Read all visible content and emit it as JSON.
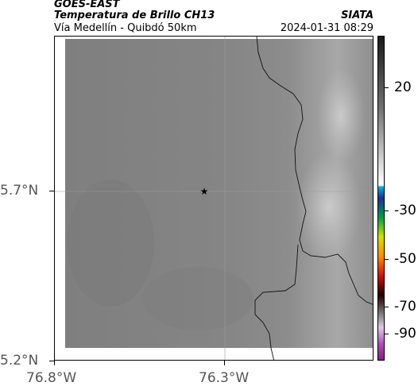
{
  "header": {
    "satellite": "GOES-EAST",
    "product": "Temperatura de Brillo CH13",
    "route": "Vía Medellín - Quibdó 50km",
    "org": "SIATA",
    "timestamp": "2024-01-31 08:29"
  },
  "axes": {
    "y_ticks": [
      "5.7°N",
      "5.2°N"
    ],
    "x_ticks": [
      "76.8°W",
      "76.3°W"
    ]
  },
  "colorbar": {
    "tick_labels": [
      "20",
      "-30",
      "-50",
      "-70",
      "-90"
    ],
    "tick_values": [
      20,
      -30,
      -50,
      -70,
      -90
    ],
    "range": [
      -95,
      40
    ]
  },
  "map": {
    "marker": "star",
    "marker_icon": "star-icon"
  }
}
